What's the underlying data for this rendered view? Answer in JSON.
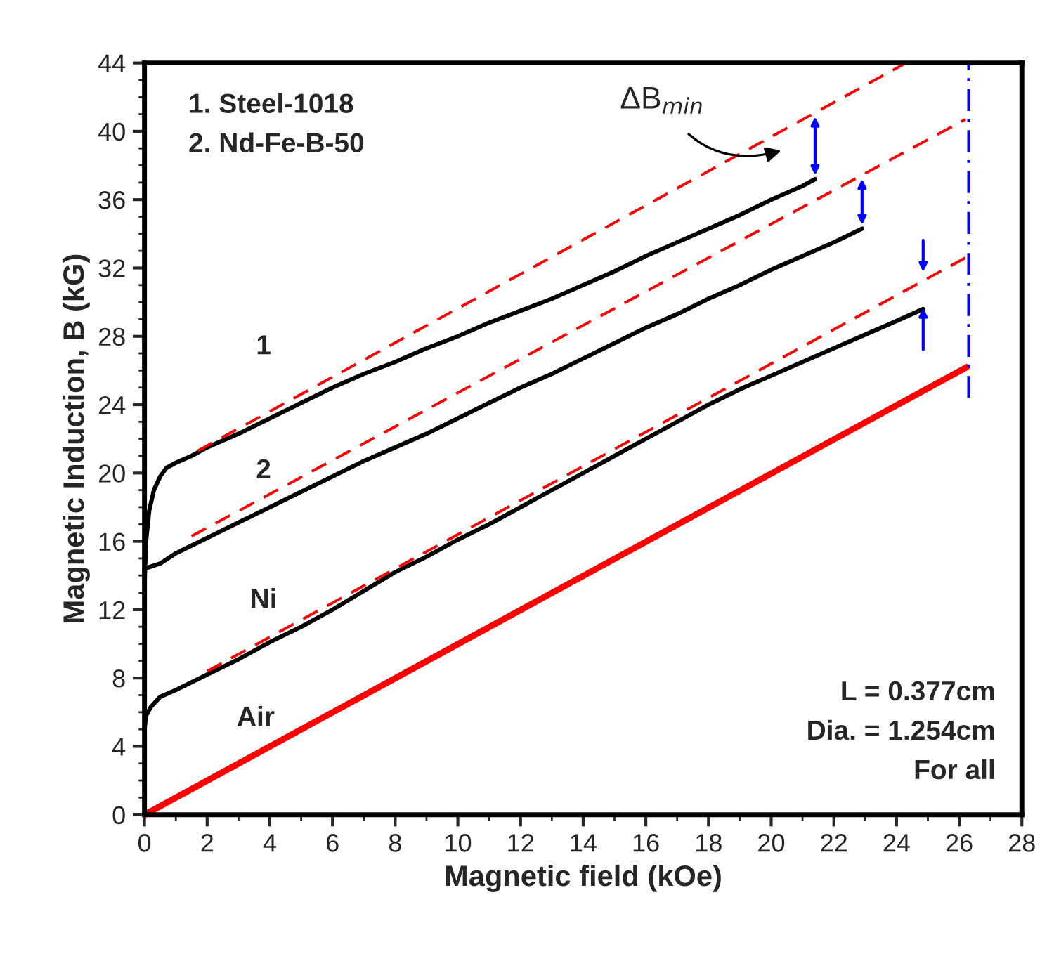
{
  "chart_data": {
    "type": "line",
    "xlabel": "Magnetic field (kOe)",
    "ylabel": "Magnetic Induction, B (kG)",
    "xlim": [
      0,
      28
    ],
    "ylim": [
      0,
      44
    ],
    "xticks": [
      0,
      2,
      4,
      6,
      8,
      10,
      12,
      14,
      16,
      18,
      20,
      22,
      24,
      26,
      28
    ],
    "yticks": [
      0,
      4,
      8,
      12,
      16,
      20,
      24,
      28,
      32,
      36,
      40,
      44
    ],
    "grid": false,
    "legend": false,
    "marker": "none",
    "series": [
      {
        "name": "1",
        "color": "#000000",
        "line_style": "solid",
        "x": [
          0,
          0.05,
          0.15,
          0.3,
          0.5,
          0.7,
          1,
          1.5,
          2,
          3,
          4,
          5,
          6,
          7,
          8,
          9,
          10,
          11,
          12,
          13,
          14,
          15,
          16,
          17,
          18,
          19,
          20,
          21,
          21.4
        ],
        "values": [
          13.5,
          16,
          17.8,
          19,
          19.8,
          20.3,
          20.6,
          21,
          21.5,
          22.3,
          23.2,
          24.1,
          25,
          25.8,
          26.5,
          27.3,
          28,
          28.8,
          29.5,
          30.2,
          31,
          31.8,
          32.7,
          33.5,
          34.3,
          35.1,
          36,
          36.8,
          37.2
        ]
      },
      {
        "name": "2",
        "color": "#000000",
        "line_style": "solid",
        "x": [
          0,
          0.5,
          1,
          2,
          3,
          4,
          5,
          6,
          7,
          8,
          9,
          10,
          11,
          12,
          13,
          14,
          15,
          16,
          17,
          18,
          19,
          20,
          21,
          22,
          22.9
        ],
        "values": [
          14.4,
          14.7,
          15.3,
          16.2,
          17.1,
          18,
          18.9,
          19.8,
          20.7,
          21.5,
          22.3,
          23.2,
          24.1,
          25,
          25.8,
          26.7,
          27.6,
          28.5,
          29.3,
          30.2,
          31,
          31.9,
          32.7,
          33.5,
          34.3
        ]
      },
      {
        "name": "Ni",
        "color": "#000000",
        "line_style": "solid",
        "x": [
          0,
          0.05,
          0.2,
          0.5,
          1,
          2,
          3,
          4,
          5,
          6,
          7,
          8,
          9,
          10,
          11,
          12,
          13,
          14,
          15,
          16,
          17,
          18,
          19,
          20,
          21,
          22,
          23,
          24,
          24.85
        ],
        "values": [
          5,
          5.8,
          6.3,
          6.9,
          7.3,
          8.2,
          9.1,
          10.1,
          11,
          12,
          13.1,
          14.2,
          15.1,
          16.1,
          17,
          18,
          19,
          20,
          21,
          22,
          23,
          24,
          24.9,
          25.7,
          26.5,
          27.3,
          28.1,
          28.9,
          29.6
        ]
      },
      {
        "name": "Air",
        "color": "#ff0000",
        "line_style": "solid",
        "x": [
          0,
          26.24
        ],
        "values": [
          0,
          26.2
        ]
      },
      {
        "color": "#ff0000",
        "line_style": "dashed",
        "x": [
          1.7,
          24.3
        ],
        "values": [
          21.3,
          44
        ]
      },
      {
        "color": "#ff0000",
        "line_style": "dashed",
        "x": [
          1.5,
          26.2
        ],
        "values": [
          16.3,
          40.7
        ]
      },
      {
        "color": "#ff0000",
        "line_style": "dashed",
        "x": [
          2,
          26.3
        ],
        "values": [
          8.4,
          32.7
        ]
      },
      {
        "color": "#0000ff",
        "line_style": "dashdot",
        "x": [
          26.3,
          26.3
        ],
        "values": [
          24.4,
          44
        ]
      }
    ],
    "annotations": [
      "1. Steel-1018\n2. Nd-Fe-B-50",
      "L = 0.377cm\nDia. = 1.254cm\nFor all",
      "ΔB$_{min}$"
    ]
  }
}
